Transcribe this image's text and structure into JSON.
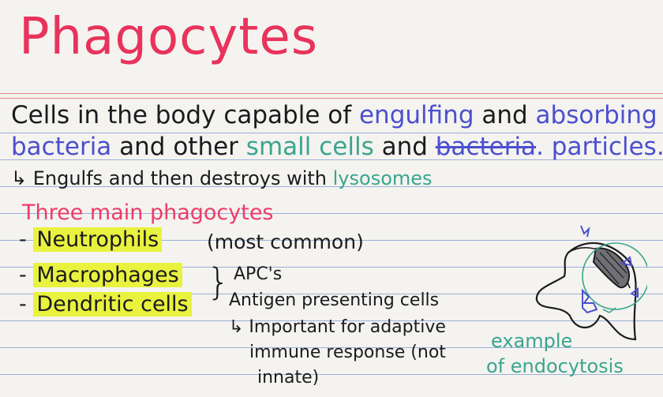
{
  "title": "Phagocytes",
  "definition": {
    "line1_prefix": "Cells in the body capable of ",
    "line1_term1": "engulfing",
    "line1_mid": " and ",
    "line1_term2": "absorbing",
    "line2_term1": "bacteria",
    "line2_mid": " and other ",
    "line2_term2": "small cells",
    "line2_and": " and ",
    "line2_struck": "bacteria",
    "line2_term3": ". particles."
  },
  "engulf_line": {
    "prefix": "↳ Engulfs and then destroys with ",
    "term": "lysosomes"
  },
  "section_heading": "Three main phagocytes",
  "phagocytes": [
    {
      "dash": "- ",
      "name": "Neutrophils"
    },
    {
      "dash": "- ",
      "name": "Macrophages"
    },
    {
      "dash": "- ",
      "name": "Dendritic cells"
    }
  ],
  "notes": {
    "most_common": "(most common)",
    "brace": "}",
    "apc": "APC's",
    "apc_full": "Antigen presenting cells",
    "important_1": "↳ Important for adaptive",
    "important_2": "immune response (not",
    "important_3": "innate)"
  },
  "example": {
    "line1": "example",
    "line2": "of endocytosis"
  },
  "colors": {
    "title": "#e8335c",
    "black_ink": "#1b1b1f",
    "blue_ink": "#4b4fd0",
    "teal_ink": "#3aa58f",
    "pink_ink": "#ee3b68",
    "highlighter": "#e9f23e",
    "rule_line": "#9bb0d8",
    "red_rule": "#e4827e"
  },
  "icons": {
    "diagram": "cell-endocytosis-diagram"
  }
}
